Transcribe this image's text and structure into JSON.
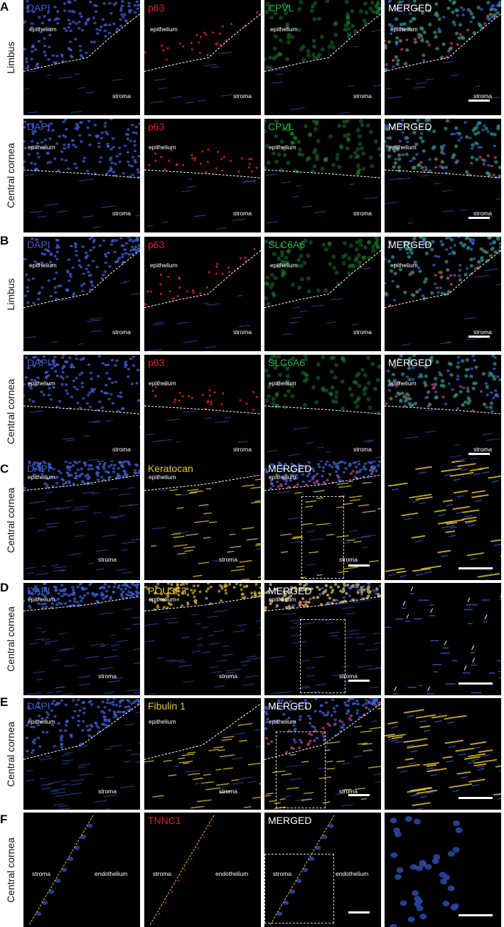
{
  "figure": {
    "sections": [
      {
        "letter": "A",
        "rows": [
          {
            "region": "Limbus",
            "panels": [
              {
                "channel": "DAPI",
                "color": "#3d5fd6",
                "boundary": "wavy",
                "tissue": [
                  "epithelium",
                  "stroma"
                ],
                "scale_bar": false
              },
              {
                "channel": "p63",
                "color": "#e0202a",
                "boundary": "wavy",
                "tissue": [
                  "epithelium",
                  "stroma"
                ],
                "scale_bar": false
              },
              {
                "channel": "CPVL",
                "color": "#2fb34a",
                "boundary": "wavy",
                "tissue": [
                  "epithelium",
                  "stroma"
                ],
                "scale_bar": false
              },
              {
                "channel": "MERGED",
                "color": "#ffffff",
                "boundary": "wavy",
                "tissue": [
                  "epithelium",
                  "stroma"
                ],
                "scale_bar": true
              }
            ]
          },
          {
            "region": "Central cornea",
            "panels": [
              {
                "channel": "DAPI",
                "color": "#3d5fd6",
                "boundary": "flat",
                "tissue": [
                  "epithelium",
                  "stroma"
                ],
                "scale_bar": false
              },
              {
                "channel": "p63",
                "color": "#e0202a",
                "boundary": "flat",
                "tissue": [
                  "epithelium",
                  "stroma"
                ],
                "scale_bar": false
              },
              {
                "channel": "CPVL",
                "color": "#2fb34a",
                "boundary": "flat",
                "tissue": [
                  "epithelium",
                  "stroma"
                ],
                "scale_bar": false
              },
              {
                "channel": "MERGED",
                "color": "#ffffff",
                "boundary": "flat",
                "tissue": [
                  "epithelium",
                  "stroma"
                ],
                "scale_bar": true
              }
            ]
          }
        ]
      },
      {
        "letter": "B",
        "rows": [
          {
            "region": "Limbus",
            "panels": [
              {
                "channel": "DAPI",
                "color": "#3d5fd6",
                "boundary": "wavy",
                "tissue": [
                  "epithelium",
                  "stroma"
                ],
                "scale_bar": false
              },
              {
                "channel": "p63",
                "color": "#e0202a",
                "boundary": "wavy",
                "tissue": [
                  "epithelium",
                  "stroma"
                ],
                "scale_bar": false
              },
              {
                "channel": "SLC6A6",
                "color": "#2fb34a",
                "boundary": "wavy",
                "tissue": [
                  "epithelium",
                  "stroma"
                ],
                "scale_bar": false
              },
              {
                "channel": "MERGED",
                "color": "#ffffff",
                "boundary": "wavy",
                "tissue": [
                  "epithelium",
                  "stroma"
                ],
                "scale_bar": true
              }
            ]
          },
          {
            "region": "Central cornea",
            "panels": [
              {
                "channel": "DAPI",
                "color": "#3d5fd6",
                "boundary": "flat",
                "tissue": [
                  "epithelium",
                  "stroma"
                ],
                "scale_bar": false
              },
              {
                "channel": "p63",
                "color": "#e0202a",
                "boundary": "flat",
                "tissue": [
                  "epithelium",
                  "stroma"
                ],
                "scale_bar": false
              },
              {
                "channel": "SLC6A6",
                "color": "#2fb34a",
                "boundary": "flat",
                "tissue": [
                  "epithelium",
                  "stroma"
                ],
                "scale_bar": false
              },
              {
                "channel": "MERGED",
                "color": "#ffffff",
                "boundary": "flat",
                "tissue": [
                  "epithelium",
                  "stroma"
                ],
                "scale_bar": true
              }
            ]
          }
        ]
      },
      {
        "letter": "C",
        "rows": [
          {
            "region": "Central cornea",
            "panels": [
              {
                "channel": "DAPI",
                "color": "#3d5fd6",
                "boundary": "slope",
                "tissue": [
                  "epithelium",
                  "stroma"
                ],
                "scale_bar": false
              },
              {
                "channel": "Keratocan",
                "color": "#e8c832",
                "boundary": "slope",
                "tissue": [
                  "epithelium",
                  "stroma"
                ],
                "scale_bar": false
              },
              {
                "channel": "MERGED",
                "color": "#ffffff",
                "boundary": "slope",
                "tissue": [
                  "epithelium",
                  "stroma"
                ],
                "scale_bar": true,
                "inset": true
              },
              {
                "channel": "",
                "color": "#ffffff",
                "boundary": "none",
                "tissue": [],
                "scale_bar": true
              }
            ]
          }
        ]
      },
      {
        "letter": "D",
        "rows": [
          {
            "region": "Central cornea",
            "panels": [
              {
                "channel": "DAPI",
                "color": "#3d5fd6",
                "boundary": "slope",
                "tissue": [
                  "epithelium",
                  "stroma"
                ],
                "scale_bar": false
              },
              {
                "channel": "POU3F3",
                "color": "#e8c832",
                "boundary": "slope",
                "tissue": [
                  "epithelium",
                  "stroma"
                ],
                "scale_bar": false
              },
              {
                "channel": "MERGED",
                "color": "#ffffff",
                "boundary": "slope",
                "tissue": [
                  "epithelium",
                  "stroma"
                ],
                "scale_bar": true,
                "inset": true
              },
              {
                "channel": "",
                "color": "#ffffff",
                "boundary": "none",
                "tissue": [],
                "scale_bar": true
              }
            ]
          }
        ]
      },
      {
        "letter": "E",
        "rows": [
          {
            "region": "Central cornea",
            "panels": [
              {
                "channel": "DAPI",
                "color": "#3d5fd6",
                "boundary": "steep",
                "tissue": [
                  "epithelium",
                  "stroma"
                ],
                "scale_bar": false
              },
              {
                "channel": "Fibulin 1",
                "color": "#e8c832",
                "boundary": "steep",
                "tissue": [
                  "epithelium",
                  "stroma"
                ],
                "scale_bar": false
              },
              {
                "channel": "MERGED",
                "color": "#ffffff",
                "boundary": "steep",
                "tissue": [
                  "epithelium",
                  "stroma"
                ],
                "scale_bar": true,
                "inset": true
              },
              {
                "channel": "",
                "color": "#ffffff",
                "boundary": "none",
                "tissue": [],
                "scale_bar": true
              }
            ]
          }
        ]
      },
      {
        "letter": "F",
        "rows": [
          {
            "region": "Central cornea",
            "panels": [
              {
                "channel": "",
                "color": "#ffffff",
                "boundary": "diagonal",
                "tissue": [
                  "stroma",
                  "endothelium"
                ],
                "scale_bar": false
              },
              {
                "channel": "TNNC1",
                "color": "#e0202a",
                "boundary": "diagonal",
                "tissue": [
                  "stroma",
                  "endothelium"
                ],
                "scale_bar": false
              },
              {
                "channel": "MERGED",
                "color": "#ffffff",
                "boundary": "diagonal",
                "tissue": [
                  "stroma",
                  "endothelium"
                ],
                "scale_bar": true,
                "inset": true
              },
              {
                "channel": "",
                "color": "#ffffff",
                "boundary": "none",
                "tissue": [],
                "scale_bar": true
              }
            ]
          }
        ]
      }
    ]
  }
}
